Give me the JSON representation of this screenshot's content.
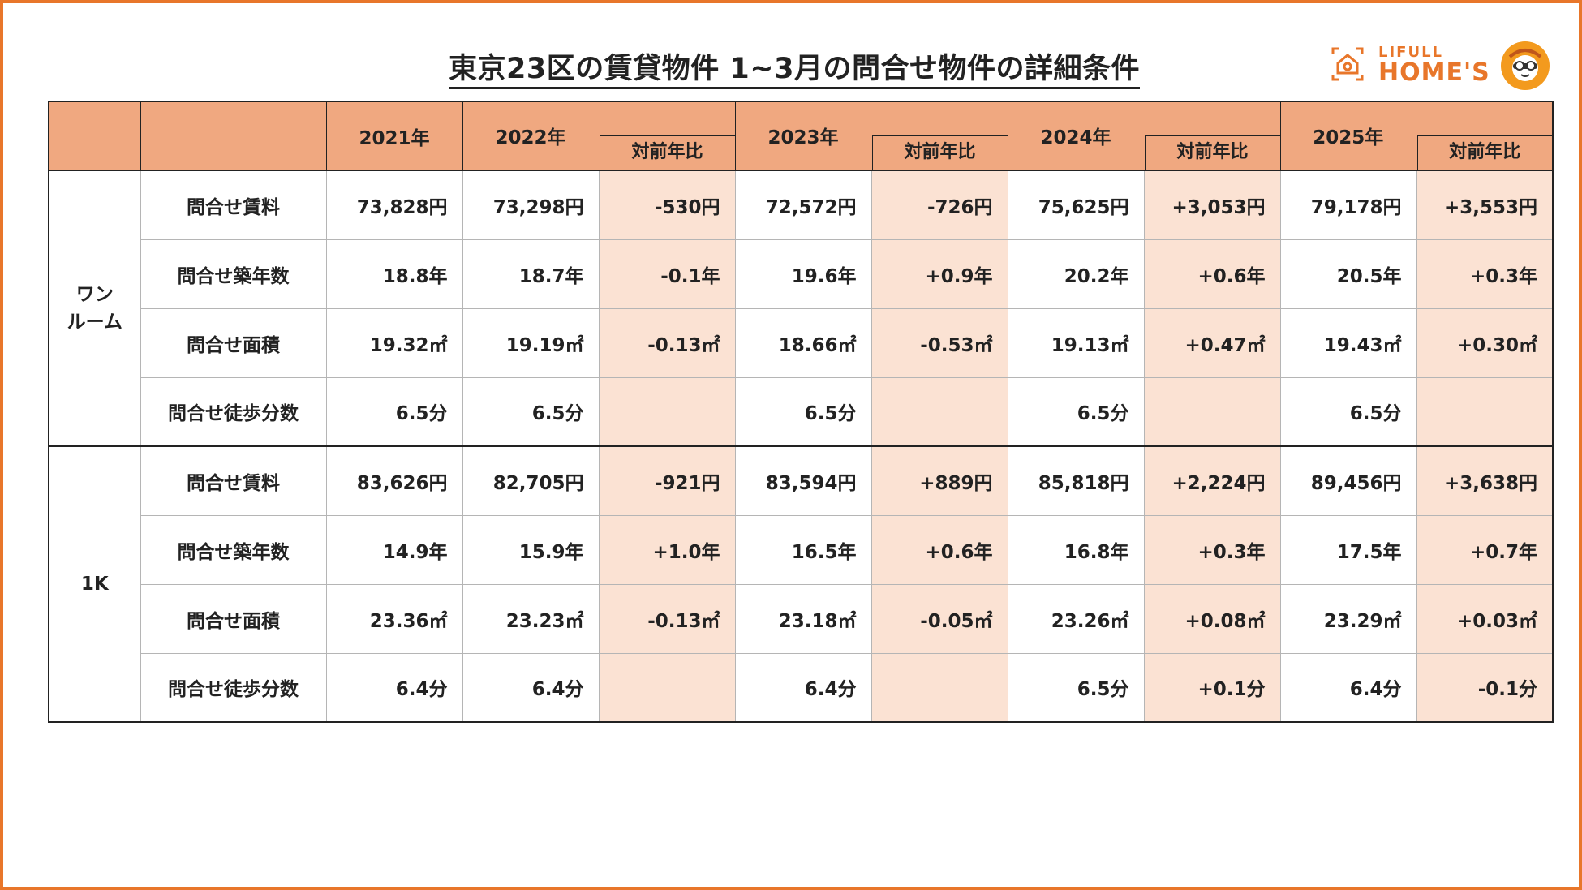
{
  "title": "東京23区の賃貸物件 1~3月の問合せ物件の詳細条件",
  "logo": {
    "small": "LIFULL",
    "big": "HOME'S"
  },
  "colors": {
    "accent": "#e8762a",
    "header_bg": "#f0a880",
    "diff_bg": "#fbe2d3"
  },
  "header": {
    "years": [
      "2021年",
      "2022年",
      "2023年",
      "2024年",
      "2025年"
    ],
    "compare_label": "対前年比"
  },
  "groups": [
    {
      "name_line1": "ワン",
      "name_line2": "ルーム",
      "rows": [
        {
          "label": "問合せ賃料",
          "values": [
            "73,828円",
            "73,298円",
            "-530円",
            "72,572円",
            "-726円",
            "75,625円",
            "+3,053円",
            "79,178円",
            "+3,553円"
          ]
        },
        {
          "label": "問合せ築年数",
          "values": [
            "18.8年",
            "18.7年",
            "-0.1年",
            "19.6年",
            "+0.9年",
            "20.2年",
            "+0.6年",
            "20.5年",
            "+0.3年"
          ]
        },
        {
          "label": "問合せ面積",
          "values": [
            "19.32㎡",
            "19.19㎡",
            "-0.13㎡",
            "18.66㎡",
            "-0.53㎡",
            "19.13㎡",
            "+0.47㎡",
            "19.43㎡",
            "+0.30㎡"
          ]
        },
        {
          "label": "問合せ徒歩分数",
          "values": [
            "6.5分",
            "6.5分",
            "",
            "6.5分",
            "",
            "6.5分",
            "",
            "6.5分",
            ""
          ]
        }
      ]
    },
    {
      "name_line1": "1K",
      "name_line2": "",
      "rows": [
        {
          "label": "問合せ賃料",
          "values": [
            "83,626円",
            "82,705円",
            "-921円",
            "83,594円",
            "+889円",
            "85,818円",
            "+2,224円",
            "89,456円",
            "+3,638円"
          ]
        },
        {
          "label": "問合せ築年数",
          "values": [
            "14.9年",
            "15.9年",
            "+1.0年",
            "16.5年",
            "+0.6年",
            "16.8年",
            "+0.3年",
            "17.5年",
            "+0.7年"
          ]
        },
        {
          "label": "問合せ面積",
          "values": [
            "23.36㎡",
            "23.23㎡",
            "-0.13㎡",
            "23.18㎡",
            "-0.05㎡",
            "23.26㎡",
            "+0.08㎡",
            "23.29㎡",
            "+0.03㎡"
          ]
        },
        {
          "label": "問合せ徒歩分数",
          "values": [
            "6.4分",
            "6.4分",
            "",
            "6.4分",
            "",
            "6.5分",
            "+0.1分",
            "6.4分",
            "-0.1分"
          ]
        }
      ]
    }
  ]
}
